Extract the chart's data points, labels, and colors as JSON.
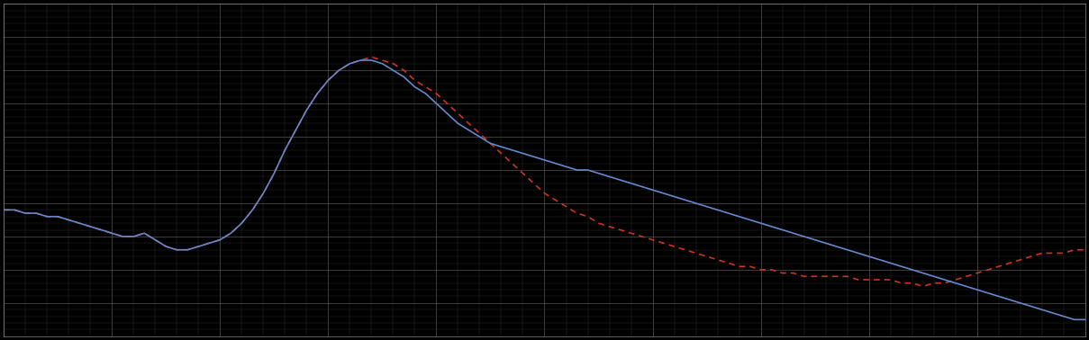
{
  "background_color": "#000000",
  "plot_bg_color": "#000000",
  "grid_color": "#444444",
  "line1_color": "#6688cc",
  "line2_color": "#cc3322",
  "line1_style": "solid",
  "line2_style": "dashed",
  "line_width": 1.2,
  "figsize": [
    12.09,
    3.78
  ],
  "dpi": 100,
  "xlim": [
    0,
    100
  ],
  "ylim": [
    0,
    100
  ],
  "x": [
    0,
    1,
    2,
    3,
    4,
    5,
    6,
    7,
    8,
    9,
    10,
    11,
    12,
    13,
    14,
    15,
    16,
    17,
    18,
    19,
    20,
    21,
    22,
    23,
    24,
    25,
    26,
    27,
    28,
    29,
    30,
    31,
    32,
    33,
    34,
    35,
    36,
    37,
    38,
    39,
    40,
    41,
    42,
    43,
    44,
    45,
    46,
    47,
    48,
    49,
    50,
    51,
    52,
    53,
    54,
    55,
    56,
    57,
    58,
    59,
    60,
    61,
    62,
    63,
    64,
    65,
    66,
    67,
    68,
    69,
    70,
    71,
    72,
    73,
    74,
    75,
    76,
    77,
    78,
    79,
    80,
    81,
    82,
    83,
    84,
    85,
    86,
    87,
    88,
    89,
    90,
    91,
    92,
    93,
    94,
    95,
    96,
    97,
    98,
    99,
    100
  ],
  "y_blue": [
    38,
    38,
    37,
    37,
    36,
    36,
    35,
    34,
    33,
    32,
    31,
    30,
    30,
    31,
    29,
    27,
    26,
    26,
    27,
    28,
    29,
    31,
    34,
    38,
    43,
    49,
    56,
    62,
    68,
    73,
    77,
    80,
    82,
    83,
    83,
    82,
    80,
    78,
    75,
    73,
    70,
    67,
    64,
    62,
    60,
    58,
    57,
    56,
    55,
    54,
    53,
    52,
    51,
    50,
    50,
    49,
    48,
    47,
    46,
    45,
    44,
    43,
    42,
    41,
    40,
    39,
    38,
    37,
    36,
    35,
    34,
    33,
    32,
    31,
    30,
    29,
    28,
    27,
    26,
    25,
    24,
    23,
    22,
    21,
    20,
    19,
    18,
    17,
    16,
    15,
    14,
    13,
    12,
    11,
    10,
    9,
    8,
    7,
    6,
    5,
    5
  ],
  "y_red": [
    38,
    38,
    37,
    37,
    36,
    36,
    35,
    34,
    33,
    32,
    31,
    30,
    30,
    31,
    29,
    27,
    26,
    26,
    27,
    28,
    29,
    31,
    34,
    38,
    43,
    49,
    56,
    62,
    68,
    73,
    77,
    80,
    82,
    83,
    84,
    83,
    82,
    80,
    77,
    75,
    73,
    70,
    67,
    64,
    61,
    58,
    55,
    52,
    49,
    46,
    43,
    41,
    39,
    37,
    36,
    34,
    33,
    32,
    31,
    30,
    29,
    28,
    27,
    26,
    25,
    24,
    23,
    22,
    21,
    21,
    20,
    20,
    19,
    19,
    18,
    18,
    18,
    18,
    18,
    17,
    17,
    17,
    17,
    16,
    16,
    15,
    16,
    16,
    17,
    18,
    19,
    20,
    21,
    22,
    23,
    24,
    25,
    25,
    25,
    26,
    26
  ],
  "spine_color": "#888888",
  "tick_color": "#888888",
  "label_color": "#888888"
}
